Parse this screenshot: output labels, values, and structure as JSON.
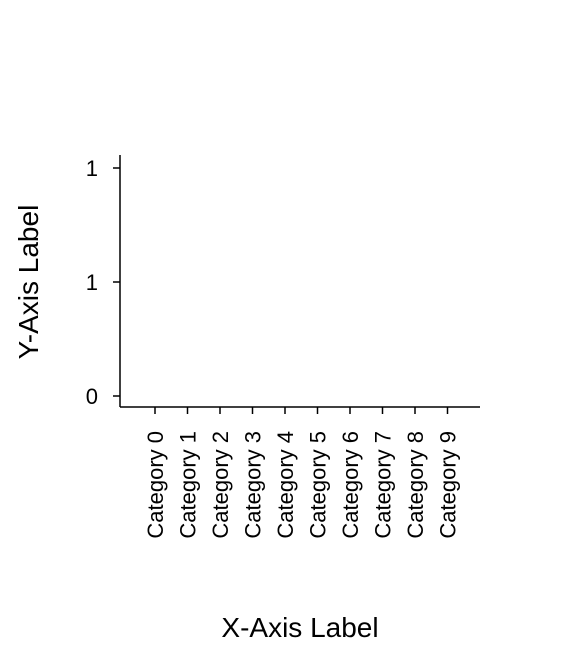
{
  "chart_data": {
    "type": "bar",
    "title": "",
    "xlabel": "X-Axis Label",
    "ylabel": "Y-Axis Label",
    "categories": [
      "Category 0",
      "Category 1",
      "Category 2",
      "Category 3",
      "Category 4",
      "Category 5",
      "Category 6",
      "Category 7",
      "Category 8",
      "Category 9"
    ],
    "values": [
      0,
      0,
      0,
      0,
      0,
      0,
      0,
      0,
      0,
      0
    ],
    "ylim": [
      0,
      1
    ],
    "y_ticks": [
      0,
      0.5,
      1
    ],
    "y_tick_labels": [
      "0",
      "1",
      "1"
    ],
    "grid": false,
    "legend": "none"
  },
  "colors": {
    "axis": "#000000",
    "background": "#ffffff"
  }
}
